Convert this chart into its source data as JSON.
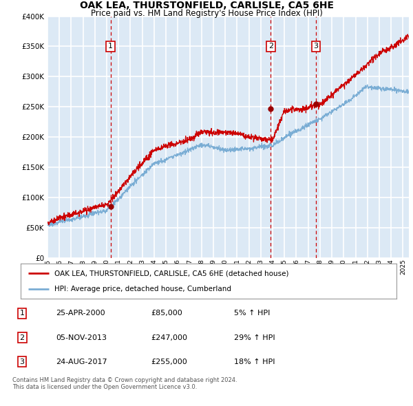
{
  "title": "OAK LEA, THURSTONFIELD, CARLISLE, CA5 6HE",
  "subtitle": "Price paid vs. HM Land Registry's House Price Index (HPI)",
  "bg_color": "#dce9f5",
  "grid_color": "#ffffff",
  "ylim": [
    0,
    400000
  ],
  "yticks": [
    0,
    50000,
    100000,
    150000,
    200000,
    250000,
    300000,
    350000,
    400000
  ],
  "sale_dates": [
    2000.32,
    2013.84,
    2017.65
  ],
  "sale_prices": [
    85000,
    247000,
    255000
  ],
  "sale_labels": [
    "1",
    "2",
    "3"
  ],
  "legend_entries": [
    "OAK LEA, THURSTONFIELD, CARLISLE, CA5 6HE (detached house)",
    "HPI: Average price, detached house, Cumberland"
  ],
  "legend_colors": [
    "#cc0000",
    "#7aadd4"
  ],
  "table_rows": [
    [
      "1",
      "25-APR-2000",
      "£85,000",
      "5% ↑ HPI"
    ],
    [
      "2",
      "05-NOV-2013",
      "£247,000",
      "29% ↑ HPI"
    ],
    [
      "3",
      "24-AUG-2017",
      "£255,000",
      "18% ↑ HPI"
    ]
  ],
  "footnote": "Contains HM Land Registry data © Crown copyright and database right 2024.\nThis data is licensed under the Open Government Licence v3.0.",
  "hpi_line_color": "#7aadd4",
  "price_line_color": "#cc0000",
  "marker_color": "#990000"
}
